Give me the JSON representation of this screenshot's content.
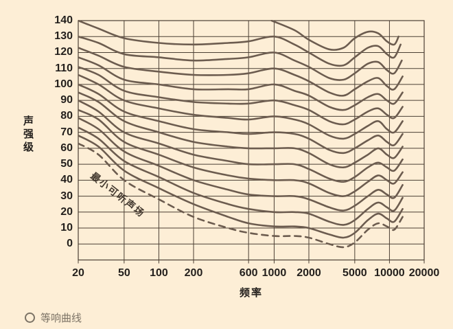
{
  "caption": {
    "text": "等响曲线"
  },
  "y_axis_title": "声强级",
  "x_axis_title": "频率",
  "maf_label": "最小可听声场",
  "colors": {
    "background": "#fdeed6",
    "grid": "#4a3f33",
    "curve": "#6c5c4f",
    "tick_text": "#231f1c",
    "caption_text": "#7c7366"
  },
  "chart_data": {
    "type": "line",
    "title": "等响曲线",
    "xlabel": "频率",
    "ylabel": "声强级",
    "x_scale": "log",
    "xlim": [
      20,
      20000
    ],
    "ylim": [
      -10,
      140
    ],
    "grid": true,
    "x_ticks": [
      20,
      50,
      100,
      200,
      600,
      1000,
      2000,
      5000,
      10000,
      20000
    ],
    "y_ticks": [
      0,
      10,
      20,
      30,
      40,
      50,
      60,
      70,
      80,
      90,
      100,
      110,
      120,
      130,
      140
    ],
    "series": [
      {
        "name": "140",
        "dashed": false,
        "points": [
          [
            950,
            140
          ],
          [
            1500,
            134
          ],
          [
            2000,
            128
          ],
          [
            3000,
            122
          ],
          [
            4000,
            123
          ],
          [
            5000,
            129
          ],
          [
            6500,
            133
          ],
          [
            8000,
            132
          ],
          [
            9500,
            127
          ],
          [
            11000,
            125
          ],
          [
            12000,
            130
          ]
        ]
      },
      {
        "name": "130",
        "dashed": false,
        "points": [
          [
            20,
            140
          ],
          [
            30,
            135
          ],
          [
            50,
            129
          ],
          [
            100,
            126
          ],
          [
            200,
            125
          ],
          [
            400,
            126
          ],
          [
            600,
            127
          ],
          [
            1000,
            130
          ],
          [
            1500,
            125
          ],
          [
            2000,
            120
          ],
          [
            3000,
            113
          ],
          [
            4000,
            112
          ],
          [
            5000,
            117
          ],
          [
            6500,
            123
          ],
          [
            8000,
            124
          ],
          [
            9500,
            119
          ],
          [
            11000,
            117
          ],
          [
            12500,
            125
          ]
        ]
      },
      {
        "name": "120",
        "dashed": false,
        "points": [
          [
            20,
            130
          ],
          [
            30,
            126
          ],
          [
            50,
            119
          ],
          [
            100,
            117
          ],
          [
            200,
            115
          ],
          [
            400,
            116
          ],
          [
            600,
            117
          ],
          [
            1000,
            120
          ],
          [
            1500,
            115
          ],
          [
            2000,
            111
          ],
          [
            3000,
            104
          ],
          [
            4000,
            103
          ],
          [
            5000,
            107
          ],
          [
            6500,
            113
          ],
          [
            8000,
            114
          ],
          [
            9500,
            109
          ],
          [
            11000,
            107
          ],
          [
            12800,
            115
          ]
        ]
      },
      {
        "name": "110",
        "dashed": false,
        "points": [
          [
            20,
            123
          ],
          [
            30,
            118
          ],
          [
            50,
            111
          ],
          [
            100,
            108
          ],
          [
            200,
            106
          ],
          [
            400,
            106
          ],
          [
            600,
            107
          ],
          [
            1000,
            110
          ],
          [
            1500,
            106
          ],
          [
            2000,
            102
          ],
          [
            3000,
            95
          ],
          [
            4000,
            93
          ],
          [
            5000,
            97
          ],
          [
            6500,
            102
          ],
          [
            8000,
            104
          ],
          [
            9500,
            99
          ],
          [
            11000,
            97
          ],
          [
            13000,
            105
          ]
        ]
      },
      {
        "name": "100",
        "dashed": false,
        "points": [
          [
            20,
            117
          ],
          [
            30,
            112
          ],
          [
            50,
            103
          ],
          [
            100,
            100
          ],
          [
            200,
            97
          ],
          [
            400,
            97
          ],
          [
            600,
            97
          ],
          [
            1000,
            100
          ],
          [
            1500,
            96
          ],
          [
            2000,
            93
          ],
          [
            3000,
            86
          ],
          [
            4000,
            84
          ],
          [
            5000,
            87
          ],
          [
            6500,
            92
          ],
          [
            8000,
            94
          ],
          [
            9500,
            90
          ],
          [
            11000,
            88
          ],
          [
            13000,
            95
          ]
        ]
      },
      {
        "name": "90",
        "dashed": false,
        "points": [
          [
            20,
            111
          ],
          [
            30,
            106
          ],
          [
            50,
            96
          ],
          [
            100,
            92
          ],
          [
            200,
            89
          ],
          [
            400,
            88
          ],
          [
            600,
            88
          ],
          [
            1000,
            90
          ],
          [
            1500,
            87
          ],
          [
            2000,
            84
          ],
          [
            3000,
            77
          ],
          [
            4000,
            75
          ],
          [
            5000,
            78
          ],
          [
            6500,
            83
          ],
          [
            8000,
            85
          ],
          [
            9500,
            81
          ],
          [
            11000,
            79
          ],
          [
            13000,
            86
          ]
        ]
      },
      {
        "name": "80",
        "dashed": false,
        "points": [
          [
            20,
            106
          ],
          [
            30,
            100
          ],
          [
            50,
            90
          ],
          [
            100,
            85
          ],
          [
            200,
            81
          ],
          [
            400,
            79
          ],
          [
            600,
            78
          ],
          [
            1000,
            80
          ],
          [
            1500,
            78
          ],
          [
            2000,
            75
          ],
          [
            3000,
            68
          ],
          [
            4000,
            66
          ],
          [
            5000,
            69
          ],
          [
            6500,
            74
          ],
          [
            8000,
            77
          ],
          [
            9500,
            72
          ],
          [
            11000,
            70
          ],
          [
            13000,
            77
          ]
        ]
      },
      {
        "name": "70",
        "dashed": false,
        "points": [
          [
            20,
            100
          ],
          [
            30,
            94
          ],
          [
            50,
            83
          ],
          [
            100,
            77
          ],
          [
            200,
            72
          ],
          [
            400,
            70
          ],
          [
            600,
            69
          ],
          [
            1000,
            70
          ],
          [
            1500,
            69
          ],
          [
            2000,
            66
          ],
          [
            3000,
            59
          ],
          [
            4000,
            57
          ],
          [
            5000,
            60
          ],
          [
            6500,
            65
          ],
          [
            8000,
            68
          ],
          [
            9500,
            64
          ],
          [
            11000,
            62
          ],
          [
            13000,
            69
          ]
        ]
      },
      {
        "name": "60",
        "dashed": false,
        "points": [
          [
            20,
            95
          ],
          [
            30,
            89
          ],
          [
            50,
            77
          ],
          [
            100,
            70
          ],
          [
            200,
            64
          ],
          [
            400,
            61
          ],
          [
            600,
            60
          ],
          [
            1000,
            60
          ],
          [
            1500,
            60
          ],
          [
            2000,
            57
          ],
          [
            3000,
            50
          ],
          [
            4000,
            48
          ],
          [
            5000,
            51
          ],
          [
            6500,
            56
          ],
          [
            8000,
            60
          ],
          [
            9500,
            56
          ],
          [
            11000,
            54
          ],
          [
            13000,
            61
          ]
        ]
      },
      {
        "name": "50",
        "dashed": false,
        "points": [
          [
            20,
            90
          ],
          [
            30,
            83
          ],
          [
            50,
            70
          ],
          [
            100,
            63
          ],
          [
            200,
            56
          ],
          [
            400,
            52
          ],
          [
            600,
            50
          ],
          [
            1000,
            50
          ],
          [
            1500,
            50
          ],
          [
            2000,
            47
          ],
          [
            3000,
            41
          ],
          [
            4000,
            39
          ],
          [
            5000,
            42
          ],
          [
            6500,
            48
          ],
          [
            8000,
            51
          ],
          [
            9500,
            48
          ],
          [
            11000,
            46
          ],
          [
            13000,
            53
          ]
        ]
      },
      {
        "name": "40",
        "dashed": false,
        "points": [
          [
            20,
            84
          ],
          [
            30,
            78
          ],
          [
            50,
            64
          ],
          [
            100,
            56
          ],
          [
            200,
            48
          ],
          [
            400,
            43
          ],
          [
            600,
            41
          ],
          [
            1000,
            40
          ],
          [
            1500,
            40
          ],
          [
            2000,
            38
          ],
          [
            3000,
            32
          ],
          [
            4000,
            30
          ],
          [
            5000,
            33
          ],
          [
            6500,
            39
          ],
          [
            8000,
            43
          ],
          [
            9500,
            40
          ],
          [
            11000,
            38
          ],
          [
            13000,
            45
          ]
        ]
      },
      {
        "name": "30",
        "dashed": false,
        "points": [
          [
            20,
            79
          ],
          [
            30,
            72
          ],
          [
            50,
            58
          ],
          [
            100,
            49
          ],
          [
            200,
            40
          ],
          [
            400,
            34
          ],
          [
            600,
            31
          ],
          [
            1000,
            30
          ],
          [
            1500,
            30
          ],
          [
            2000,
            28
          ],
          [
            3000,
            23
          ],
          [
            4000,
            21
          ],
          [
            5000,
            24
          ],
          [
            6500,
            30
          ],
          [
            8000,
            34
          ],
          [
            9500,
            31
          ],
          [
            11000,
            29
          ],
          [
            13000,
            37
          ]
        ]
      },
      {
        "name": "20",
        "dashed": false,
        "points": [
          [
            20,
            73
          ],
          [
            30,
            66
          ],
          [
            50,
            52
          ],
          [
            100,
            42
          ],
          [
            200,
            32
          ],
          [
            400,
            25
          ],
          [
            600,
            22
          ],
          [
            1000,
            20
          ],
          [
            1500,
            20
          ],
          [
            2000,
            19
          ],
          [
            3000,
            14
          ],
          [
            4000,
            12
          ],
          [
            5000,
            15
          ],
          [
            6500,
            22
          ],
          [
            8000,
            26
          ],
          [
            9500,
            23
          ],
          [
            11000,
            21
          ],
          [
            13000,
            29
          ]
        ]
      },
      {
        "name": "10",
        "dashed": false,
        "points": [
          [
            20,
            68
          ],
          [
            30,
            61
          ],
          [
            50,
            46
          ],
          [
            100,
            35
          ],
          [
            200,
            25
          ],
          [
            400,
            17
          ],
          [
            600,
            13
          ],
          [
            1000,
            11
          ],
          [
            1500,
            11
          ],
          [
            2000,
            10
          ],
          [
            3000,
            6
          ],
          [
            4000,
            4
          ],
          [
            5000,
            7
          ],
          [
            6500,
            15
          ],
          [
            8000,
            19
          ],
          [
            9500,
            16
          ],
          [
            11000,
            14
          ],
          [
            13000,
            22
          ]
        ]
      },
      {
        "name": "最小可听声场",
        "dashed": true,
        "points": [
          [
            20,
            63
          ],
          [
            30,
            56
          ],
          [
            50,
            40
          ],
          [
            100,
            28
          ],
          [
            200,
            17
          ],
          [
            400,
            10
          ],
          [
            600,
            7
          ],
          [
            1000,
            5
          ],
          [
            1500,
            5
          ],
          [
            2000,
            4
          ],
          [
            3000,
            0
          ],
          [
            4000,
            -2
          ],
          [
            5000,
            1
          ],
          [
            6500,
            9
          ],
          [
            8000,
            13
          ],
          [
            9500,
            11
          ],
          [
            11000,
            9
          ],
          [
            13000,
            17
          ]
        ]
      }
    ]
  }
}
